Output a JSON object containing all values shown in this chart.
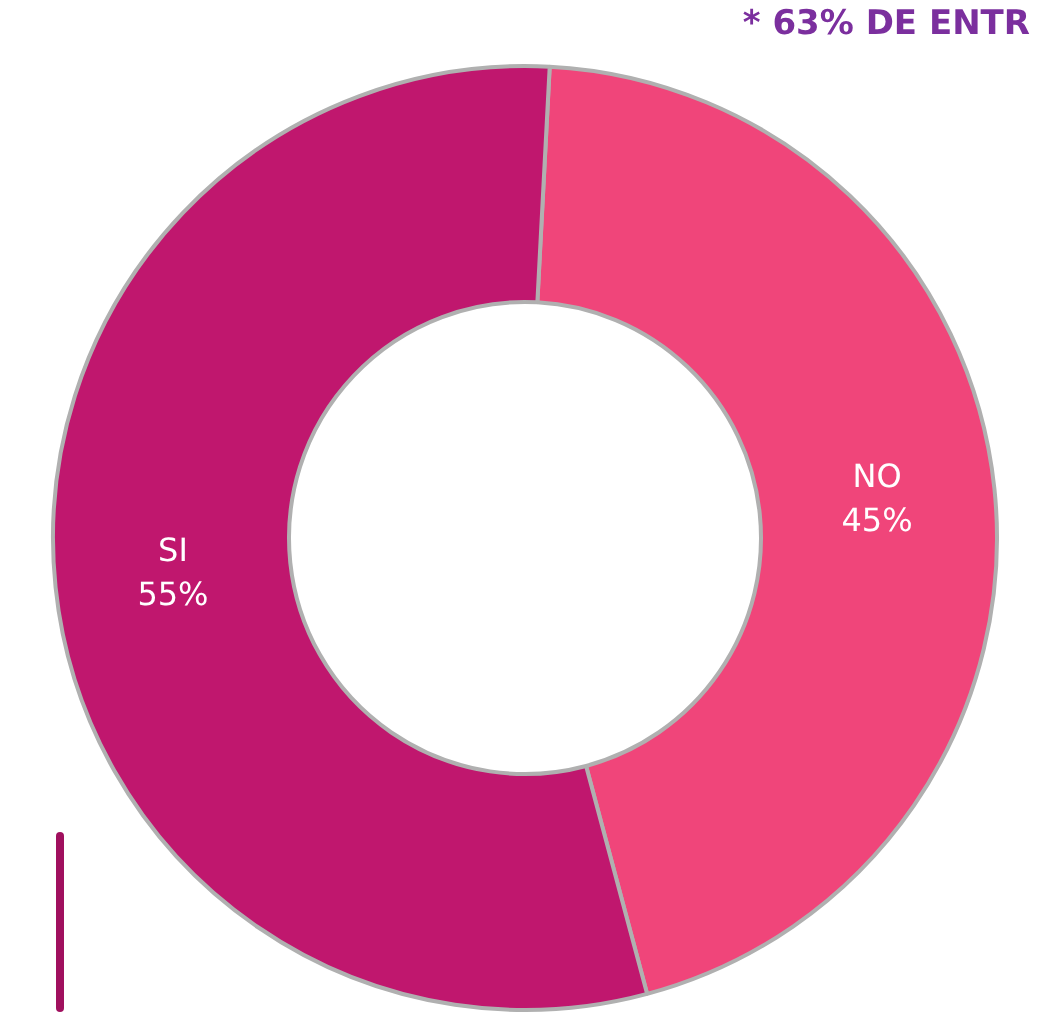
{
  "chart_data": {
    "type": "donut",
    "categories": [
      "NO",
      "SI"
    ],
    "values": [
      45,
      55
    ],
    "colors": [
      "#f0457a",
      "#c0176e"
    ],
    "value_labels": [
      "45%",
      "55%"
    ],
    "annotations": [
      "* 63% DE ENTR"
    ],
    "legend": false
  }
}
